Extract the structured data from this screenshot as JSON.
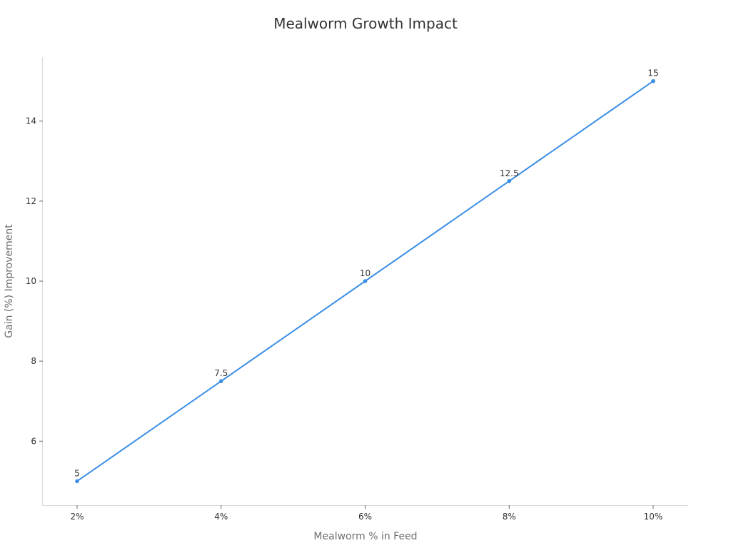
{
  "chart_data": {
    "type": "line",
    "title": "Mealworm Growth Impact",
    "xlabel": "Mealworm % in Feed",
    "ylabel": "Gain (%) Improvement",
    "categories": [
      "2%",
      "4%",
      "6%",
      "8%",
      "10%"
    ],
    "series": [
      {
        "values": [
          5,
          7.5,
          10,
          12.5,
          15
        ],
        "data_labels": [
          "5",
          "7.5",
          "10",
          "12.5",
          "15"
        ],
        "color": "#3a8ee6"
      }
    ],
    "y_ticks": [
      6,
      8,
      10,
      12,
      14
    ],
    "ylim": [
      4.4,
      15.6
    ],
    "grid": false,
    "legend": "none"
  }
}
